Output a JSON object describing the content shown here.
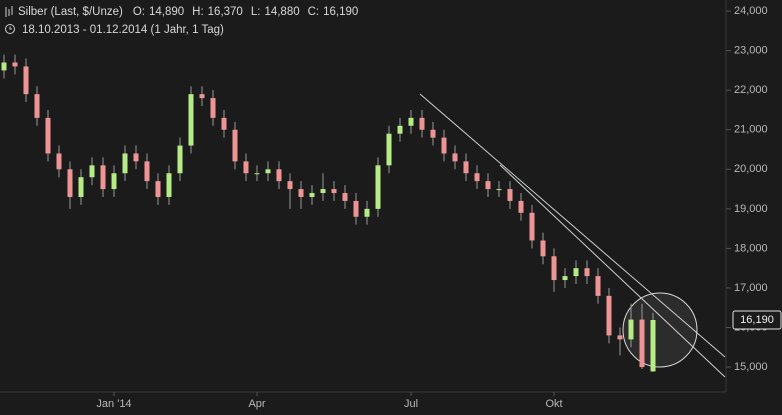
{
  "chart_data": {
    "type": "candlestick",
    "title": "Silber (Last, $/Unze)",
    "ohlc": [
      {
        "name": "O:",
        "value": 14890,
        "label": "14,890"
      },
      {
        "name": "H:",
        "value": 16370,
        "label": "16,370"
      },
      {
        "name": "L:",
        "value": 14880,
        "label": "14,880"
      },
      {
        "name": "C:",
        "value": 16190,
        "label": "16,190"
      }
    ],
    "subtitle": "18.10.2013 - 01.12.2014 (1 Jahr, 1 Tag)",
    "categories": [
      null,
      null,
      null,
      null,
      null,
      null,
      null,
      null,
      null,
      null,
      "Jan '14",
      null,
      null,
      null,
      null,
      null,
      null,
      null,
      null,
      null,
      null,
      null,
      null,
      "Apr",
      null,
      null,
      null,
      null,
      null,
      null,
      null,
      null,
      null,
      null,
      null,
      null,
      null,
      "Jul",
      null,
      null,
      null,
      null,
      null,
      null,
      null,
      null,
      null,
      null,
      null,
      null,
      "Okt",
      null,
      null,
      null,
      null,
      null,
      null,
      null,
      null,
      null
    ],
    "open": [
      22500,
      22700,
      22600,
      21900,
      21300,
      20400,
      20000,
      19300,
      19800,
      20100,
      19500,
      19900,
      20400,
      20200,
      19700,
      19300,
      19900,
      20600,
      21900,
      21800,
      21300,
      21000,
      20200,
      19900,
      19900,
      20000,
      19700,
      19500,
      19300,
      19400,
      19500,
      19400,
      19200,
      18800,
      19000,
      20100,
      20900,
      21100,
      21300,
      21000,
      20800,
      20400,
      20200,
      19900,
      19700,
      19500,
      19500,
      19200,
      18900,
      18200,
      17800,
      17200,
      17300,
      17500,
      17300,
      16800,
      15800,
      15700,
      16200,
      14890
    ],
    "high": [
      22900,
      22900,
      22800,
      22100,
      21500,
      20600,
      20200,
      20000,
      20300,
      20300,
      20100,
      20600,
      20600,
      20400,
      19900,
      20100,
      20800,
      22100,
      22100,
      22000,
      21500,
      21200,
      20400,
      20100,
      20200,
      20200,
      19900,
      19700,
      19600,
      19900,
      19700,
      19600,
      19400,
      19200,
      20300,
      21100,
      21300,
      21500,
      21500,
      21200,
      21000,
      20600,
      20400,
      20100,
      19900,
      19700,
      19700,
      19400,
      19100,
      18400,
      18000,
      17500,
      17700,
      17700,
      17500,
      17000,
      16000,
      16600,
      16600,
      16370
    ],
    "low": [
      22300,
      22400,
      21700,
      21100,
      20200,
      19800,
      19000,
      19100,
      19600,
      19300,
      19300,
      19700,
      20000,
      19500,
      19100,
      19100,
      19700,
      20400,
      21600,
      21100,
      20800,
      20000,
      19700,
      19700,
      19700,
      19500,
      19000,
      19000,
      19100,
      19200,
      19200,
      19000,
      18600,
      18600,
      18800,
      19900,
      20700,
      20900,
      20800,
      20600,
      20200,
      20000,
      19700,
      19500,
      19300,
      19300,
      19000,
      18700,
      18000,
      17600,
      16900,
      17000,
      17100,
      17100,
      16600,
      15600,
      15300,
      15500,
      14950,
      14880
    ],
    "close": [
      22700,
      22600,
      21900,
      21300,
      20400,
      20000,
      19300,
      19800,
      20100,
      19500,
      19900,
      20400,
      20200,
      19700,
      19300,
      19900,
      20600,
      21900,
      21800,
      21300,
      21000,
      20200,
      19900,
      19900,
      20000,
      19700,
      19500,
      19300,
      19400,
      19500,
      19400,
      19200,
      18800,
      19000,
      20100,
      20900,
      21100,
      21300,
      21000,
      20800,
      20400,
      20200,
      19900,
      19700,
      19500,
      19500,
      19200,
      18900,
      18200,
      17800,
      17200,
      17300,
      17500,
      17300,
      16800,
      15800,
      15700,
      16200,
      15000,
      16190
    ],
    "up_color": "#b6ec86",
    "down_color": "#ef9494",
    "ylim": [
      14420,
      24280
    ],
    "yticks": [
      {
        "value": 24000,
        "label": "24,000"
      },
      {
        "value": 23000,
        "label": "23,000"
      },
      {
        "value": 22000,
        "label": "22,000"
      },
      {
        "value": 21000,
        "label": "21,000"
      },
      {
        "value": 20000,
        "label": "20,000"
      },
      {
        "value": 19000,
        "label": "19,000"
      },
      {
        "value": 18000,
        "label": "18,000"
      },
      {
        "value": 17000,
        "label": "17,000"
      },
      {
        "value": 16000,
        "label": "16,000"
      },
      {
        "value": 15000,
        "label": "15,000"
      }
    ],
    "last_price": {
      "value": 16190,
      "label": "16,190"
    }
  }
}
